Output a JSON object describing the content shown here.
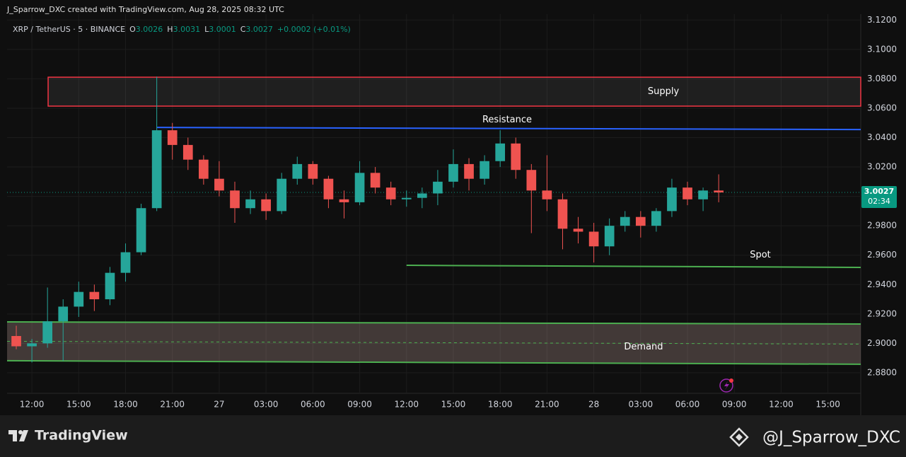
{
  "chart_data": {
    "type": "candlestick",
    "attribution": "J_Sparrow_DXC created with TradingView.com, Aug 28, 2025 08:32 UTC",
    "title": "XRP / TetherUS · 5 · BINANCE",
    "ohlc_legend": {
      "open_label": "O",
      "open": 3.0026,
      "high_label": "H",
      "high": 3.0031,
      "low_label": "L",
      "low": 3.0001,
      "close_label": "C",
      "close": 3.0027,
      "change": "+0.0002 (+0.01%)"
    },
    "x": [
      -1,
      0,
      1,
      2,
      3,
      4,
      5,
      6,
      7,
      8,
      9,
      10,
      11,
      12,
      13,
      14,
      15,
      16,
      17,
      18,
      19,
      20,
      21,
      22,
      23,
      24,
      25,
      26,
      27,
      28,
      29,
      30,
      31,
      32,
      33,
      34,
      35,
      36,
      37,
      38,
      39,
      40,
      41,
      42,
      43,
      44
    ],
    "open": [
      2.905,
      2.898,
      2.9,
      2.915,
      2.925,
      2.935,
      2.93,
      2.948,
      2.962,
      2.992,
      3.045,
      3.035,
      3.025,
      3.012,
      3.004,
      2.992,
      2.998,
      2.99,
      3.012,
      3.022,
      3.012,
      2.998,
      2.996,
      3.016,
      3.006,
      2.998,
      2.999,
      3.002,
      3.01,
      3.022,
      3.012,
      3.024,
      3.036,
      3.018,
      3.004,
      2.998,
      2.978,
      2.976,
      2.966,
      2.98,
      2.986,
      2.98,
      2.99,
      3.006,
      2.998,
      3.004
    ],
    "high": [
      2.912,
      2.903,
      2.938,
      2.93,
      2.942,
      2.94,
      2.952,
      2.968,
      2.995,
      3.0815,
      3.05,
      3.04,
      3.028,
      3.024,
      3.01,
      3.004,
      3.002,
      3.016,
      3.027,
      3.024,
      3.014,
      3.004,
      3.024,
      3.02,
      3.01,
      3.004,
      3.006,
      3.018,
      3.032,
      3.026,
      3.028,
      3.045,
      3.04,
      3.022,
      3.028,
      3.002,
      2.986,
      2.982,
      2.985,
      2.99,
      2.99,
      2.992,
      3.012,
      3.01,
      3.006,
      3.015
    ],
    "low": [
      2.896,
      2.887,
      2.897,
      2.888,
      2.918,
      2.922,
      2.926,
      2.942,
      2.96,
      2.99,
      3.025,
      3.018,
      3.008,
      3.0,
      2.982,
      2.988,
      2.984,
      2.988,
      3.008,
      3.008,
      2.992,
      2.985,
      2.994,
      3.002,
      2.994,
      2.993,
      2.992,
      2.994,
      3.006,
      3.004,
      3.008,
      3.02,
      3.012,
      2.975,
      2.99,
      2.964,
      2.968,
      2.955,
      2.96,
      2.976,
      2.972,
      2.976,
      2.986,
      2.994,
      2.99,
      2.996
    ],
    "close": [
      2.898,
      2.9,
      2.915,
      2.925,
      2.935,
      2.93,
      2.948,
      2.962,
      2.992,
      3.045,
      3.035,
      3.025,
      3.012,
      3.004,
      2.992,
      2.998,
      2.99,
      3.012,
      3.022,
      3.012,
      2.998,
      2.996,
      3.016,
      3.006,
      2.998,
      2.999,
      3.002,
      3.01,
      3.022,
      3.012,
      3.024,
      3.036,
      3.018,
      3.004,
      2.998,
      2.978,
      2.976,
      2.966,
      2.98,
      2.986,
      2.98,
      2.99,
      3.006,
      2.998,
      3.004,
      3.0027
    ],
    "up_color": "#26a69a",
    "down_color": "#ef5350",
    "xlim": [
      -1.59,
      53.1
    ],
    "xticks": [
      {
        "value": 0,
        "label": "12:00"
      },
      {
        "value": 3,
        "label": "15:00"
      },
      {
        "value": 6,
        "label": "18:00"
      },
      {
        "value": 9,
        "label": "21:00"
      },
      {
        "value": 12,
        "label": "27"
      },
      {
        "value": 15,
        "label": "03:00"
      },
      {
        "value": 18,
        "label": "06:00"
      },
      {
        "value": 21,
        "label": "09:00"
      },
      {
        "value": 24,
        "label": "12:00"
      },
      {
        "value": 27,
        "label": "15:00"
      },
      {
        "value": 30,
        "label": "18:00"
      },
      {
        "value": 33,
        "label": "21:00"
      },
      {
        "value": 36,
        "label": "28"
      },
      {
        "value": 39,
        "label": "03:00"
      },
      {
        "value": 42,
        "label": "06:00"
      },
      {
        "value": 45,
        "label": "09:00"
      },
      {
        "value": 48,
        "label": "12:00"
      },
      {
        "value": 51,
        "label": "15:00"
      }
    ],
    "ylim": [
      2.866,
      3.124
    ],
    "yticks": [
      {
        "value": 3.12,
        "label": "3.1200"
      },
      {
        "value": 3.1,
        "label": "3.1000"
      },
      {
        "value": 3.08,
        "label": "3.0800"
      },
      {
        "value": 3.06,
        "label": "3.0600"
      },
      {
        "value": 3.04,
        "label": "3.0400"
      },
      {
        "value": 3.02,
        "label": "3.0200"
      },
      {
        "value": 3.0,
        "label": "3.0000"
      },
      {
        "value": 2.98,
        "label": "2.9800"
      },
      {
        "value": 2.96,
        "label": "2.9600"
      },
      {
        "value": 2.94,
        "label": "2.9400"
      },
      {
        "value": 2.92,
        "label": "2.9200"
      },
      {
        "value": 2.9,
        "label": "2.9000"
      },
      {
        "value": 2.88,
        "label": "2.8800"
      }
    ],
    "grid": true,
    "last_price": {
      "value": 3.0027,
      "countdown": "02:34",
      "color": "#089981"
    },
    "drawings": [
      {
        "kind": "zone",
        "label": "Supply",
        "x_start": 1.04,
        "top": [
          3.0811,
          3.0811
        ],
        "bottom": [
          3.0614,
          3.0614
        ],
        "color": "#f23645"
      },
      {
        "kind": "line",
        "label": "Resistance",
        "x_start": 8.02,
        "start": 3.0469,
        "end": 3.0455,
        "color": "#2962ff"
      },
      {
        "kind": "line",
        "label": "Spot",
        "x_start": 24.0,
        "start": 2.9531,
        "end": 2.9517,
        "color": "#4caf50"
      },
      {
        "kind": "zone",
        "label": "Demand",
        "x_start": -1.59,
        "top": [
          2.9146,
          2.9132
        ],
        "bottom": [
          2.8882,
          2.8858
        ],
        "color": "#4caf50"
      }
    ]
  },
  "footer": {
    "brand": "TradingView",
    "handle": "@J_Sparrow_DXC"
  }
}
